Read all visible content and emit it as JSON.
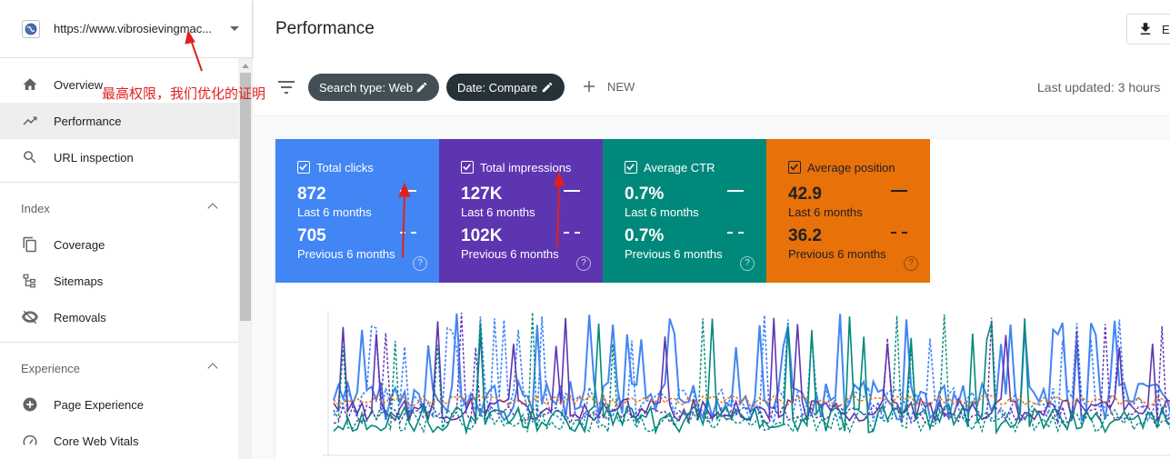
{
  "property": {
    "url": "https://www.vibrosievingmac..."
  },
  "nav": {
    "overview": "Overview",
    "performance": "Performance",
    "url_inspection": "URL inspection",
    "index_header": "Index",
    "coverage": "Coverage",
    "sitemaps": "Sitemaps",
    "removals": "Removals",
    "experience_header": "Experience",
    "page_experience": "Page Experience",
    "core_web_vitals": "Core Web Vitals"
  },
  "header": {
    "title": "Performance",
    "export_label": "E"
  },
  "filters": {
    "search_type": "Search type: Web",
    "date": "Date: Compare",
    "new_label": "NEW",
    "last_updated": "Last updated: 3 hours"
  },
  "metrics": [
    {
      "name": "Total clicks",
      "current": "872",
      "current_period": "Last 6 months",
      "previous": "705",
      "previous_period": "Previous 6 months",
      "color": "#4285f4"
    },
    {
      "name": "Total impressions",
      "current": "127K",
      "current_period": "Last 6 months",
      "previous": "102K",
      "previous_period": "Previous 6 months",
      "color": "#5e35b1"
    },
    {
      "name": "Average CTR",
      "current": "0.7%",
      "current_period": "Last 6 months",
      "previous": "0.7%",
      "previous_period": "Previous 6 months",
      "color": "#00897b"
    },
    {
      "name": "Average position",
      "current": "42.9",
      "current_period": "Last 6 months",
      "previous": "36.2",
      "previous_period": "Previous 6 months",
      "color": "#e8710a"
    }
  ],
  "help_glyph": "?",
  "annotation": {
    "text": "最高权限，我们优化的证明",
    "color": "#e02020"
  },
  "colors": {
    "accent_blue": "#4285f4",
    "purple": "#5e35b1",
    "teal": "#00897b",
    "orange": "#e8710a",
    "chip_dark": "#424f56"
  }
}
